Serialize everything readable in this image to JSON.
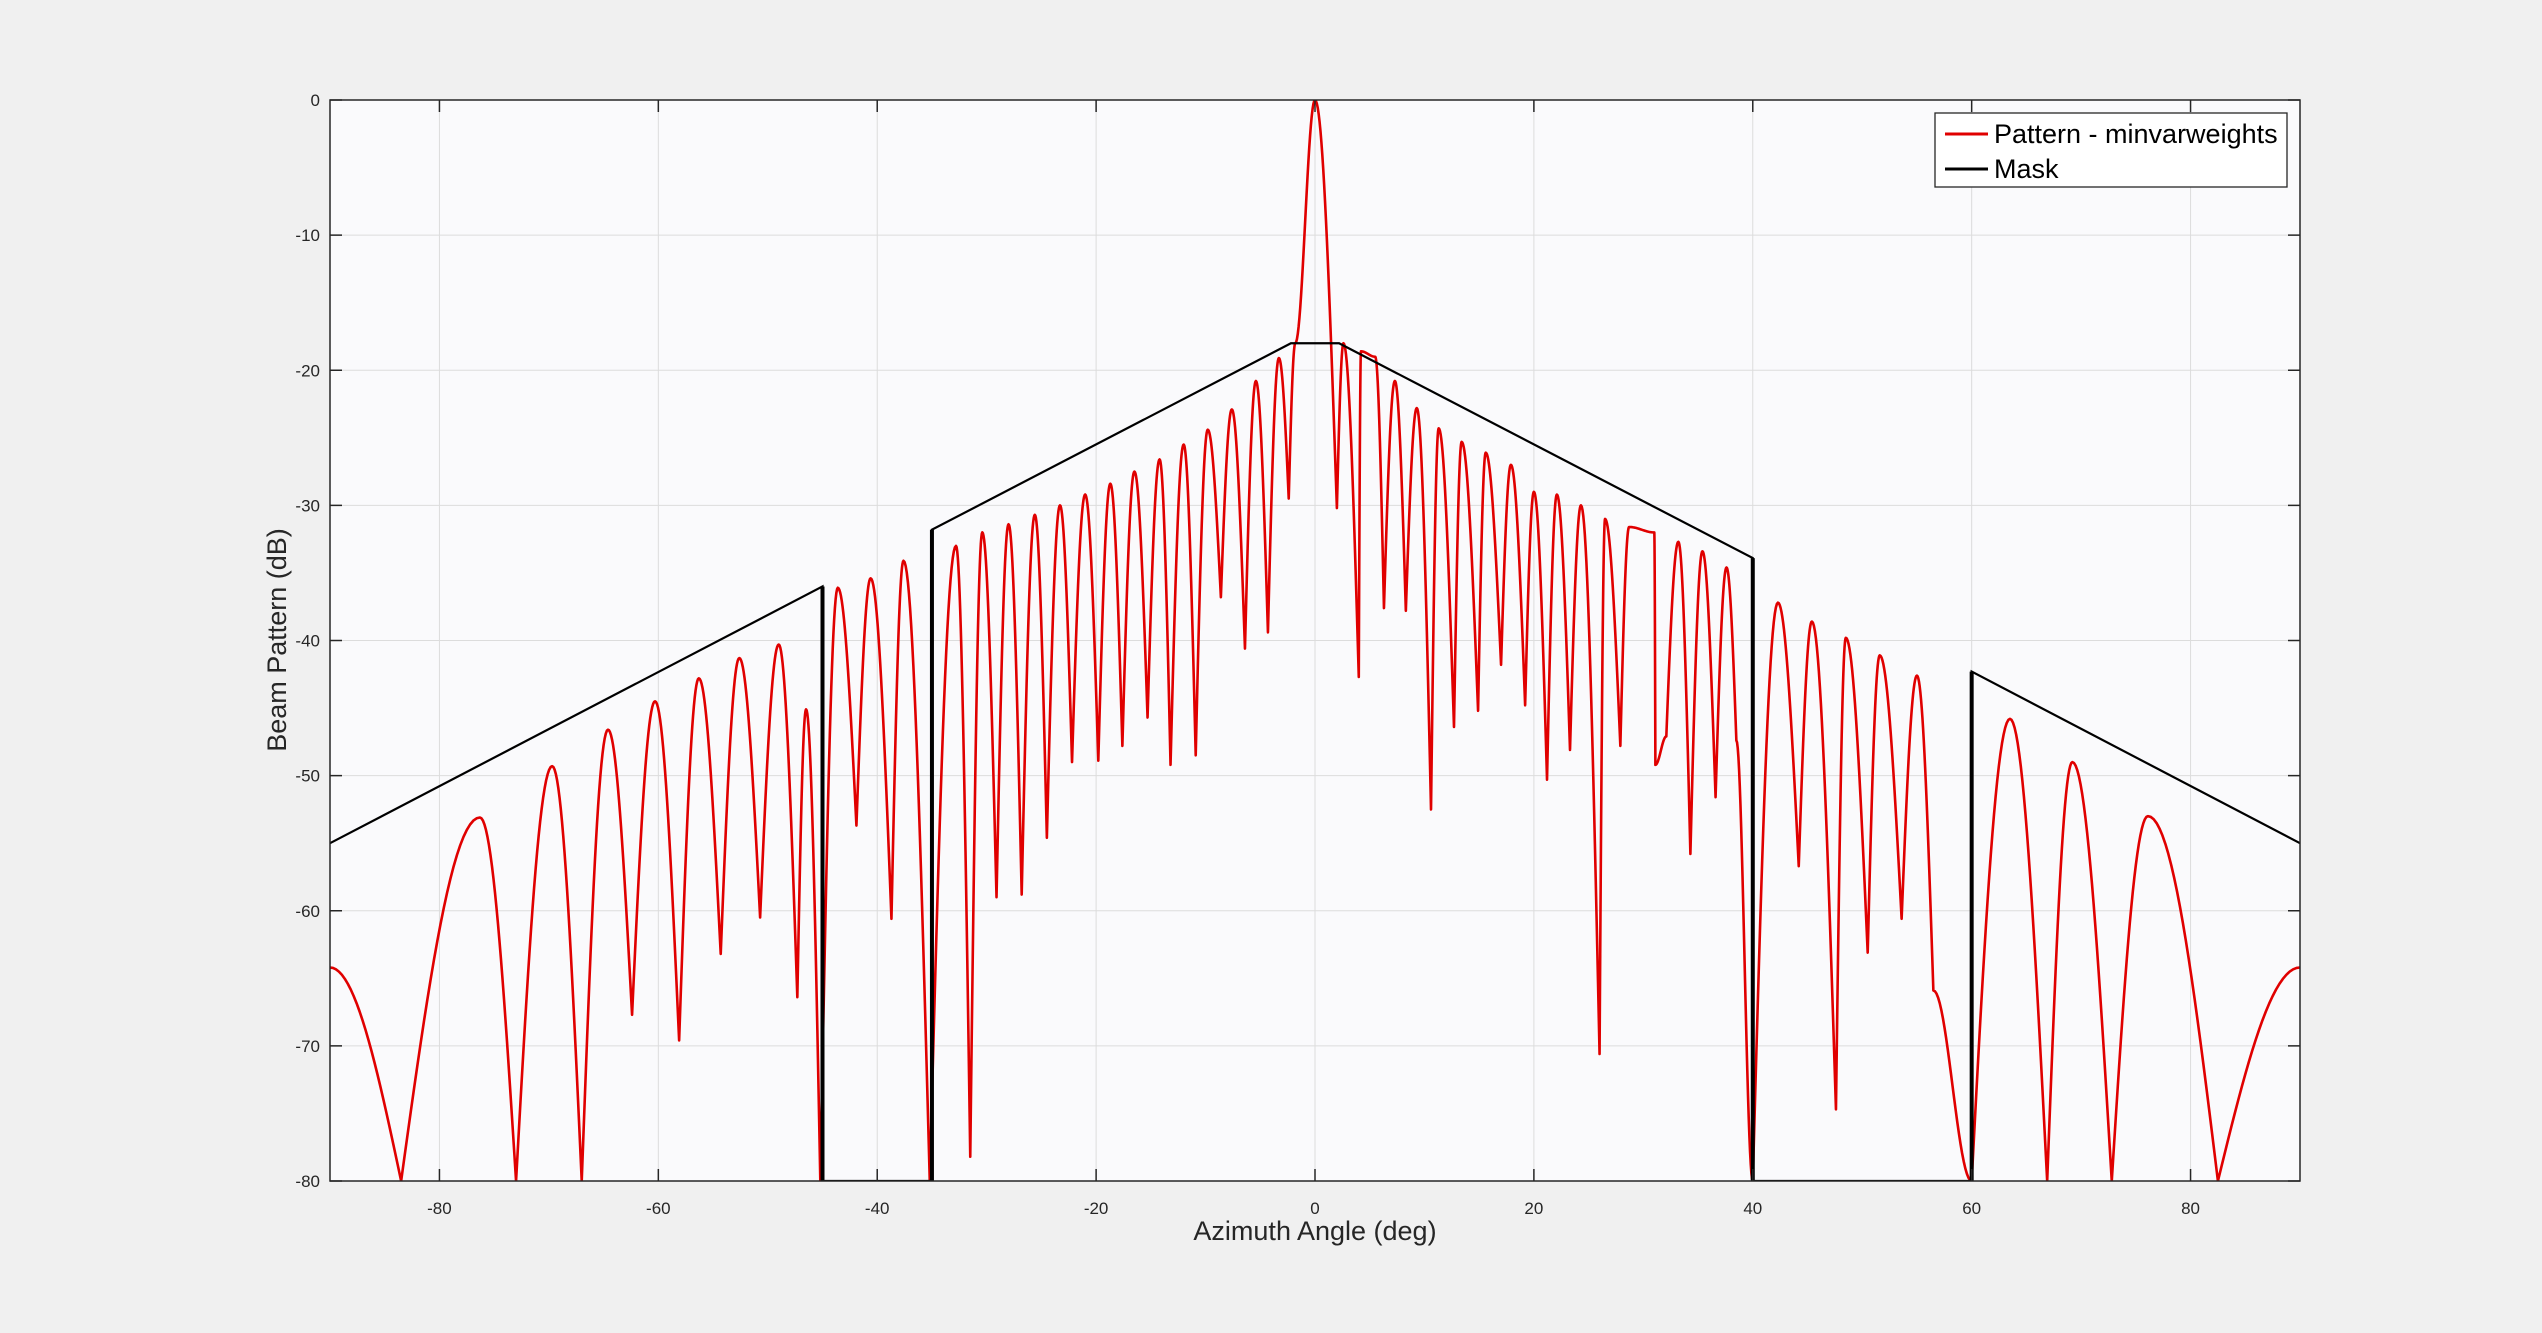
{
  "chart_data": {
    "type": "line",
    "title": "",
    "xlabel": "Azimuth Angle (deg)",
    "ylabel": "Beam Pattern (dB)",
    "xlim": [
      -90,
      90
    ],
    "ylim": [
      -80,
      0
    ],
    "xticks": [
      -80,
      -60,
      -40,
      -20,
      0,
      20,
      40,
      60,
      80
    ],
    "yticks": [
      0,
      -10,
      -20,
      -30,
      -40,
      -50,
      -60,
      -70,
      -80
    ],
    "grid": true,
    "legend_position": "top-right",
    "series": [
      {
        "name": "Pattern - minvarweights",
        "color": "#e00000",
        "kind": "pattern",
        "endpoints": [
          [
            -90,
            -64.2
          ],
          [
            90,
            -64.2
          ]
        ],
        "peaks": [
          [
            -76.3,
            -53.1
          ],
          [
            -69.7,
            -49.3
          ],
          [
            -64.6,
            -46.6
          ],
          [
            -60.3,
            -44.5
          ],
          [
            -56.3,
            -42.8
          ],
          [
            -52.6,
            -41.3
          ],
          [
            -49.0,
            -40.3
          ],
          [
            -46.5,
            -45.1
          ],
          [
            -43.6,
            -36.1
          ],
          [
            -40.6,
            -35.4
          ],
          [
            -37.6,
            -34.1
          ],
          [
            -32.8,
            -33.0
          ],
          [
            -30.4,
            -32.0
          ],
          [
            -28.0,
            -31.4
          ],
          [
            -25.6,
            -30.7
          ],
          [
            -23.3,
            -30.0
          ],
          [
            -21.0,
            -29.2
          ],
          [
            -18.7,
            -28.4
          ],
          [
            -16.5,
            -27.5
          ],
          [
            -14.2,
            -26.6
          ],
          [
            -12.0,
            -25.5
          ],
          [
            -9.8,
            -24.4
          ],
          [
            -7.6,
            -22.9
          ],
          [
            -5.4,
            -20.8
          ],
          [
            -3.3,
            -19.1
          ],
          [
            -1.8,
            -18.0
          ],
          [
            0,
            0
          ],
          [
            2.6,
            -18.0
          ],
          [
            4.2,
            -18.6
          ],
          [
            5.5,
            -19.0
          ],
          [
            7.3,
            -20.8
          ],
          [
            9.3,
            -22.8
          ],
          [
            11.3,
            -24.3
          ],
          [
            13.4,
            -25.3
          ],
          [
            15.6,
            -26.1
          ],
          [
            17.9,
            -27.0
          ],
          [
            20.0,
            -29.0
          ],
          [
            22.1,
            -29.2
          ],
          [
            24.3,
            -30.0
          ],
          [
            26.5,
            -31.0
          ],
          [
            28.7,
            -31.6
          ],
          [
            31.0,
            -32.0
          ],
          [
            33.2,
            -32.7
          ],
          [
            35.4,
            -33.4
          ],
          [
            37.6,
            -34.6
          ],
          [
            42.3,
            -37.2
          ],
          [
            45.4,
            -38.6
          ],
          [
            48.5,
            -39.8
          ],
          [
            51.6,
            -41.1
          ],
          [
            55.0,
            -42.6
          ],
          [
            63.5,
            -45.8
          ],
          [
            69.2,
            -49.0
          ],
          [
            76.1,
            -53.0
          ]
        ],
        "nulls": [
          [
            -83.5,
            -80
          ],
          [
            -73.0,
            -80
          ],
          [
            -67.0,
            -80
          ],
          [
            -62.4,
            -67.7
          ],
          [
            -58.1,
            -69.6
          ],
          [
            -54.3,
            -63.2
          ],
          [
            -50.7,
            -60.5
          ],
          [
            -47.3,
            -66.4
          ],
          [
            -45.2,
            -80
          ],
          [
            -41.9,
            -53.7
          ],
          [
            -38.7,
            -60.6
          ],
          [
            -35.2,
            -80
          ],
          [
            -31.5,
            -78.2
          ],
          [
            -29.1,
            -59.0
          ],
          [
            -26.8,
            -58.8
          ],
          [
            -24.5,
            -54.6
          ],
          [
            -22.2,
            -49.0
          ],
          [
            -19.8,
            -48.9
          ],
          [
            -17.6,
            -47.8
          ],
          [
            -15.3,
            -45.7
          ],
          [
            -13.2,
            -49.2
          ],
          [
            -10.9,
            -48.5
          ],
          [
            -8.6,
            -36.8
          ],
          [
            -6.4,
            -40.6
          ],
          [
            -4.3,
            -39.4
          ],
          [
            -2.4,
            -29.5
          ],
          [
            2.0,
            -30.2
          ],
          [
            4.0,
            -42.7
          ],
          [
            6.3,
            -37.6
          ],
          [
            8.3,
            -37.8
          ],
          [
            10.6,
            -52.5
          ],
          [
            12.7,
            -46.4
          ],
          [
            14.9,
            -45.2
          ],
          [
            17.0,
            -41.8
          ],
          [
            19.2,
            -44.8
          ],
          [
            21.2,
            -50.3
          ],
          [
            23.3,
            -48.1
          ],
          [
            26.0,
            -70.6
          ],
          [
            27.9,
            -47.8
          ],
          [
            31.1,
            -49.2
          ],
          [
            32.1,
            -47.1
          ],
          [
            34.3,
            -55.8
          ],
          [
            36.6,
            -51.6
          ],
          [
            38.5,
            -47.4
          ],
          [
            40.0,
            -80
          ],
          [
            44.2,
            -56.7
          ],
          [
            47.6,
            -74.7
          ],
          [
            50.5,
            -63.1
          ],
          [
            53.6,
            -60.6
          ],
          [
            56.5,
            -65.9
          ],
          [
            60.0,
            -80
          ],
          [
            66.9,
            -80
          ],
          [
            72.8,
            -80
          ],
          [
            82.5,
            -80
          ]
        ]
      },
      {
        "name": "Mask",
        "color": "#000000",
        "kind": "mask",
        "x": [
          -90,
          -45,
          -45,
          -35,
          -35,
          -2.2,
          2.2,
          40,
          40,
          60,
          60,
          90
        ],
        "y": [
          -55,
          -36,
          -80,
          -80,
          -31.8,
          -18.0,
          -18.0,
          -33.9,
          -80,
          -80,
          -42.3,
          -55
        ],
        "walls": [
          -45,
          -35,
          40,
          60
        ]
      }
    ]
  }
}
